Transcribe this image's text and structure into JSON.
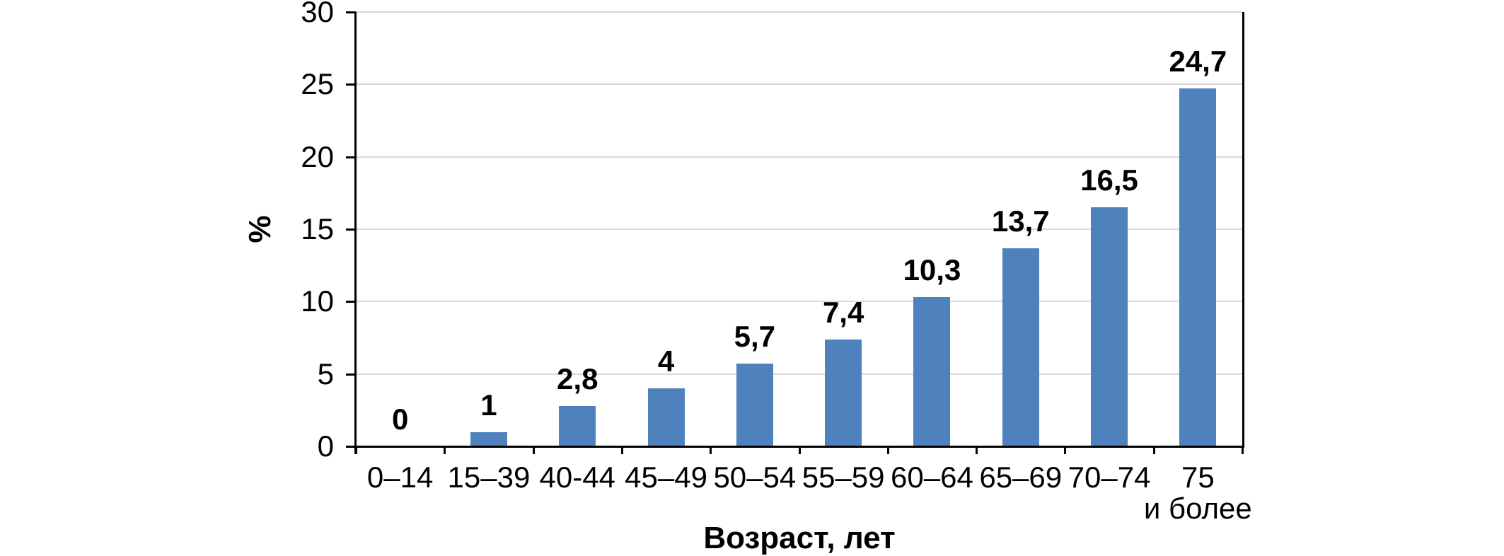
{
  "chart_data": {
    "type": "bar",
    "title": "",
    "xlabel": "Возраст, лет",
    "ylabel": "%",
    "categories": [
      "0–14",
      "15–39",
      "40-44",
      "45–49",
      "50–54",
      "55–59",
      "60–64",
      "65–69",
      "70–74",
      "75 и более"
    ],
    "categories_display": [
      [
        "0–14"
      ],
      [
        "15–39"
      ],
      [
        "40-44"
      ],
      [
        "45–49"
      ],
      [
        "50–54"
      ],
      [
        "55–59"
      ],
      [
        "60–64"
      ],
      [
        "65–69"
      ],
      [
        "70–74"
      ],
      [
        "75",
        "и более"
      ]
    ],
    "values": [
      0,
      1,
      2.8,
      4,
      5.7,
      7.4,
      10.3,
      13.7,
      16.5,
      24.7
    ],
    "value_labels": [
      "0",
      "1",
      "2,8",
      "4",
      "5,7",
      "7,4",
      "10,3",
      "13,7",
      "16,5",
      "24,7"
    ],
    "yticks": [
      0,
      5,
      10,
      15,
      20,
      25,
      30
    ],
    "ytick_labels": [
      "0",
      "5",
      "10",
      "15",
      "20",
      "25",
      "30"
    ],
    "ylim": [
      0,
      30
    ],
    "grid": true,
    "legend": "none",
    "colors": {
      "bar": "#4F81BD",
      "gridline": "#D9D9D9",
      "axis": "#000000",
      "text": "#000000",
      "background": "#FFFFFF"
    }
  }
}
